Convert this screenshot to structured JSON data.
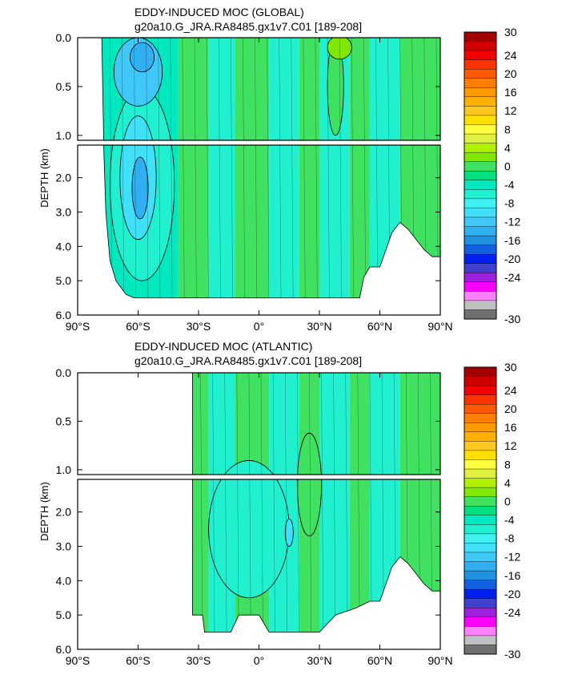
{
  "chart_data": [
    {
      "type": "heatmap",
      "title": "EDDY-INDUCED MOC (GLOBAL)",
      "subtitle": "g20a10.G_JRA.RA8485.gx1v7.C01 [189-208]",
      "ylabel": "DEPTH (km)",
      "xlabel": "",
      "x_ticks": [
        "90°S",
        "60°S",
        "30°S",
        "0°",
        "30°N",
        "60°N",
        "90°N"
      ],
      "x_tick_values": [
        -90,
        -60,
        -30,
        0,
        30,
        60,
        90
      ],
      "y_upper_ticks": [
        "0.0",
        "0.5",
        "1.0"
      ],
      "y_upper_values": [
        0.0,
        0.5,
        1.0
      ],
      "y_lower_ticks": [
        "2.0",
        "3.0",
        "4.0",
        "5.0",
        "6.0"
      ],
      "y_lower_values": [
        2.0,
        3.0,
        4.0,
        5.0,
        6.0
      ],
      "ylim_upper": [
        0,
        1.05
      ],
      "ylim_lower": [
        1.05,
        6.0
      ],
      "xlim": [
        -90,
        90
      ],
      "ocean_mask": [
        [
          -78,
          0
        ],
        [
          -77,
          1.2
        ],
        [
          -76,
          3.0
        ],
        [
          -74,
          4.4
        ],
        [
          -71,
          5.0
        ],
        [
          -66,
          5.4
        ],
        [
          -62,
          5.5
        ],
        [
          50,
          5.5
        ],
        [
          52,
          4.9
        ],
        [
          55,
          4.6
        ],
        [
          60,
          4.6
        ],
        [
          63,
          4.1
        ],
        [
          66,
          3.6
        ],
        [
          70,
          3.3
        ],
        [
          74,
          3.5
        ],
        [
          78,
          3.8
        ],
        [
          82,
          4.1
        ],
        [
          86,
          4.3
        ],
        [
          90,
          4.3
        ],
        [
          90,
          0
        ]
      ],
      "features": [
        {
          "lat": -60,
          "depth": 0.35,
          "value": -10,
          "rx": 12,
          "ry": 0.35
        },
        {
          "lat": -58,
          "depth": 0.2,
          "value": -12,
          "rx": 6,
          "ry": 0.15
        },
        {
          "lat": -59,
          "depth": 2.3,
          "value": -12,
          "rx": 4,
          "ry": 0.9
        },
        {
          "lat": -60,
          "depth": 2.0,
          "value": -8,
          "rx": 9,
          "ry": 1.8
        },
        {
          "lat": -58,
          "depth": 2.2,
          "value": -4,
          "rx": 16,
          "ry": 2.8
        },
        {
          "lat": 40,
          "depth": 0.1,
          "value": 4,
          "rx": 6,
          "ry": 0.12
        },
        {
          "lat": 38,
          "depth": 0.5,
          "value": 2,
          "rx": 4,
          "ry": 0.5
        }
      ]
    },
    {
      "type": "heatmap",
      "title": "EDDY-INDUCED MOC (ATLANTIC)",
      "subtitle": "g20a10.G_JRA.RA8485.gx1v7.C01 [189-208]",
      "ylabel": "DEPTH (km)",
      "xlabel": "",
      "x_ticks": [
        "90°S",
        "60°S",
        "30°S",
        "0°",
        "30°N",
        "60°N",
        "90°N"
      ],
      "x_tick_values": [
        -90,
        -60,
        -30,
        0,
        30,
        60,
        90
      ],
      "y_upper_ticks": [
        "0.0",
        "0.5",
        "1.0"
      ],
      "y_upper_values": [
        0.0,
        0.5,
        1.0
      ],
      "y_lower_ticks": [
        "2.0",
        "3.0",
        "4.0",
        "5.0",
        "6.0"
      ],
      "y_lower_values": [
        2.0,
        3.0,
        4.0,
        5.0,
        6.0
      ],
      "ylim_upper": [
        0,
        1.05
      ],
      "ylim_lower": [
        1.05,
        6.0
      ],
      "xlim": [
        -90,
        90
      ],
      "ocean_mask": [
        [
          -33,
          0
        ],
        [
          -33,
          5.0
        ],
        [
          -28,
          5.0
        ],
        [
          -27,
          5.5
        ],
        [
          -14,
          5.5
        ],
        [
          -10,
          5.0
        ],
        [
          0,
          5.0
        ],
        [
          5,
          5.5
        ],
        [
          30,
          5.5
        ],
        [
          38,
          5.0
        ],
        [
          48,
          4.8
        ],
        [
          55,
          4.6
        ],
        [
          60,
          4.6
        ],
        [
          63,
          4.1
        ],
        [
          66,
          3.6
        ],
        [
          70,
          3.3
        ],
        [
          74,
          3.5
        ],
        [
          78,
          3.8
        ],
        [
          82,
          4.1
        ],
        [
          86,
          4.3
        ],
        [
          90,
          4.3
        ],
        [
          90,
          0
        ]
      ],
      "features": [
        {
          "lat": -5,
          "depth": 2.5,
          "value": -4,
          "rx": 20,
          "ry": 2.0
        },
        {
          "lat": 15,
          "depth": 2.6,
          "value": -8,
          "rx": 2,
          "ry": 0.4
        },
        {
          "lat": 25,
          "depth": 1.2,
          "value": 2,
          "rx": 6,
          "ry": 1.5
        }
      ]
    }
  ],
  "colorbar": {
    "labels": [
      "30",
      "24",
      "20",
      "16",
      "12",
      "8",
      "4",
      "0",
      "-4",
      "-8",
      "-12",
      "-16",
      "-20",
      "-24",
      "-30"
    ],
    "colors": [
      "#a50000",
      "#d00000",
      "#f00000",
      "#ff3300",
      "#ff5a00",
      "#ff8000",
      "#ff9a00",
      "#ffb000",
      "#ffc820",
      "#ffe000",
      "#ffff40",
      "#e0f040",
      "#b0f000",
      "#80e800",
      "#40e060",
      "#00e080",
      "#00e8c0",
      "#20f0d0",
      "#40f0f0",
      "#40e0f8",
      "#40c8f8",
      "#30b0f0",
      "#2090e0",
      "#1060e0",
      "#0020f0",
      "#4040d0",
      "#a020e0",
      "#ff00ff",
      "#ff80ff",
      "#c0c0c0",
      "#707070"
    ]
  }
}
